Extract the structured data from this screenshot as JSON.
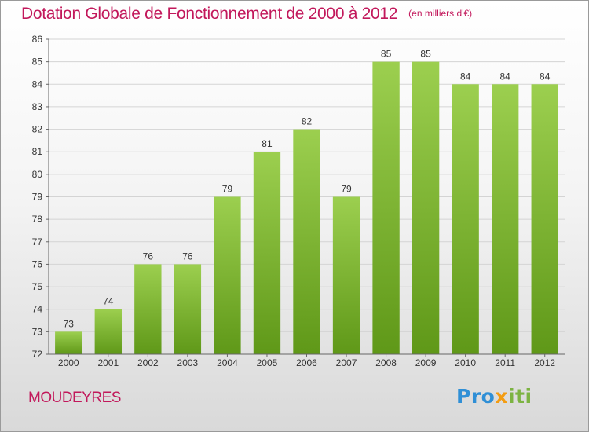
{
  "title": "Dotation Globale de Fonctionnement de 2000 à 2012",
  "unit_note": "(en milliers d'€)",
  "commune": "MOUDEYRES",
  "logo": {
    "part1": "Pro",
    "part2": "x",
    "part3": "iti"
  },
  "colors": {
    "title": "#c2185b",
    "bar_top": "#9ccf4f",
    "bar_bottom": "#5f9818",
    "grid": "#d4d4d4"
  },
  "chart_data": {
    "type": "bar",
    "categories": [
      "2000",
      "2001",
      "2002",
      "2003",
      "2004",
      "2005",
      "2006",
      "2007",
      "2008",
      "2009",
      "2010",
      "2011",
      "2012"
    ],
    "values": [
      73,
      74,
      76,
      76,
      79,
      81,
      82,
      79,
      85,
      85,
      84,
      84,
      84
    ],
    "ylim": [
      72,
      86
    ],
    "yticks": [
      72,
      73,
      74,
      75,
      76,
      77,
      78,
      79,
      80,
      81,
      82,
      83,
      84,
      85,
      86
    ],
    "grid": true,
    "data_labels": true
  }
}
